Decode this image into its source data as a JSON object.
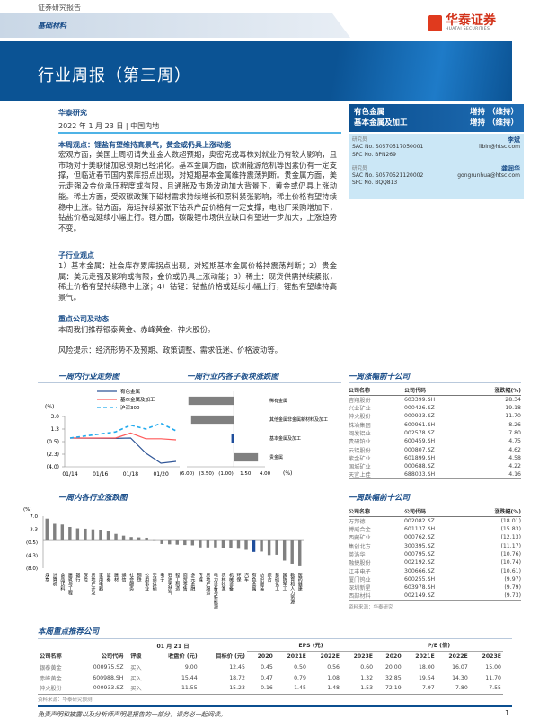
{
  "header": {
    "report_type": "证券研究报告",
    "sector": "基础材料",
    "title": "行业周报（第三周）",
    "logo_cn": "华泰证券",
    "logo_en": "HUATAI SECURITIES"
  },
  "ratings": [
    {
      "industry": "有色金属",
      "rating": "增持 （维持）"
    },
    {
      "industry": "基本金属及加工",
      "rating": "增持 （维持）"
    }
  ],
  "analysts": [
    {
      "role": "研究员",
      "name": "李斌",
      "sac": "SAC No. S0570517050001",
      "sfc": "SFC No. BPN269",
      "email": "libin@htsc.com"
    },
    {
      "role": "研究员",
      "name": "龚润华",
      "sac": "SAC No. S0570521120002",
      "sfc": "SFC No. BQQ813",
      "email": "gongrunhua@htsc.com"
    }
  ],
  "meta": {
    "org": "华泰研究",
    "date": "2022 年 1 月 23 日",
    "region": "中国内地"
  },
  "summary": {
    "heading": "本周观点：锂盐有望维持高景气，黄金或仍具上涨动能",
    "text": "宏观方面，美国上周初请失业金人数超预期，奥密克戎毒株对就业仍有较大影响，且市场对于美联储加息预期已经消化。基本金属方面，欧洲能源危机等因素仍有一定支撑，但临近春节国内累库拐点出现，对短期基本金属维持震荡判断。贵金属方面，美元走强及金价承压程度或有限，且通胀及市场波动加大背景下，黄金或仍具上涨动能。稀土方面，受双碳政策下磁材需求持续增长和原料紧张影响，稀土价格有望持续稳中上涨。钴方面，海运持续紧张下钴系产品价格有一定支撑，电池厂采购增加下，钴盐价格或延续小幅上行。锂方面，碳酸锂市场供应缺口有望进一步加大，上涨趋势不变。"
  },
  "sub_view": {
    "heading": "子行业观点",
    "text": "1）基本金属：社会库存累库拐点出现，对短期基本金属价格持震荡判断；2）贵金属：美元走强及影响或有限，金价或仍具上涨动能；3）稀土：现货供需持续紧张，稀土价格有望持续稳中上涨；4）钴锂：钴盐价格或延续小幅上行，锂盐有望维持高景气。"
  },
  "companies": {
    "heading": "重点公司及动态",
    "text": "本周我们推荐银泰黄金、赤峰黄金、神火股份。"
  },
  "risk": {
    "text": "风险提示：经济形势不及预期、政策调整、需求低迷、价格波动等。"
  },
  "chart_data": [
    {
      "type": "line",
      "title": "一周内行业走势图",
      "ylabel": "(%)",
      "x": [
        "01/14",
        "01/17",
        "01/18",
        "01/19",
        "01/20",
        "01/21"
      ],
      "x_ticks": [
        "01/14",
        "01/16",
        "01/18",
        "01/20"
      ],
      "y_ticks": [
        "3.0",
        "1.3",
        "(0.5)",
        "(2.3)",
        "(4.0)"
      ],
      "ylim": [
        -4.0,
        3.0
      ],
      "legend": "top",
      "series": [
        {
          "name": "有色金属",
          "color": "#2f5597",
          "values": [
            0,
            -0.05,
            0,
            -2.1,
            -3.5,
            -3.25
          ]
        },
        {
          "name": "基本金属及加工",
          "color": "#ff5a5a",
          "values": [
            0,
            0,
            0.7,
            -0.1,
            -0.1,
            -0.25
          ]
        },
        {
          "name": "沪深300",
          "color": "#22aaee",
          "dashed": true,
          "values": [
            0,
            0.85,
            1.8,
            1.25,
            2.05,
            1.0
          ]
        }
      ]
    },
    {
      "type": "bar",
      "orientation": "horizontal",
      "title": "一周行业内各子板块涨跌图",
      "xlabel": "(%)",
      "xlim": [
        -6,
        4
      ],
      "x_ticks": [
        "(6.00)",
        "(3.50)",
        "(1.00)",
        "1.50",
        "4.00"
      ],
      "categories": [
        "稀有金属",
        "其他金属非金属新材料及加工",
        "基本金属及加工",
        "贵金属"
      ],
      "values": [
        -5.8,
        -5.45,
        -0.3,
        3.1
      ],
      "highlight": "基本金属及加工"
    },
    {
      "type": "bar",
      "title": "一周内各行业涨跌图",
      "ylabel": "(%)",
      "ylim": [
        -8.0,
        7.0
      ],
      "y_ticks": [
        "7.0",
        "3.3",
        "(0.5)",
        "(4.3)",
        "(8.0)"
      ],
      "highlight": "有色金属",
      "categories": [
        "煤炭",
        "计算机",
        "食品饮料",
        "建筑与工程",
        "银行",
        "保险",
        "房地产开发",
        "家用电器",
        "证券",
        "建材",
        "通信",
        "社会服务",
        "钢铁",
        "公用事业",
        "交通运输",
        "电子",
        "石油天然气",
        "轻工制造",
        "商贸零售",
        "多元金融",
        "传媒",
        "房地产服务",
        "电力设备与新能源",
        "农林牧渔",
        "机械设备",
        "环保",
        "汽车",
        "有色金属",
        "纺织服装",
        "综合",
        "基础化工",
        "国防军工",
        "教育和人力资源",
        "医药健康"
      ],
      "values": [
        6.3,
        4.8,
        4.6,
        3.9,
        3.5,
        3.4,
        3.2,
        3.0,
        2.6,
        1.9,
        1.4,
        1.0,
        0.9,
        0.8,
        0.05,
        -1.0,
        -1.1,
        -1.2,
        -1.3,
        -1.4,
        -2.0,
        -2.0,
        -2.0,
        -2.1,
        -2.3,
        -2.4,
        -2.7,
        -3.3,
        -3.2,
        -4.2,
        -4.1,
        -5.8,
        -6.7,
        -7.2
      ]
    }
  ],
  "colors": {
    "brand": "#0b5394",
    "highlight_bar": "#1f4e9c",
    "bar": "#808080"
  },
  "top_gainers": {
    "heading": "一周涨幅前十公司",
    "cols": [
      "公司名称",
      "公司代码",
      "涨跌幅(%)"
    ],
    "rows": [
      [
        "吉翔股份",
        "603399.SH",
        "28.34"
      ],
      [
        "兴业矿业",
        "000426.SZ",
        "19.18"
      ],
      [
        "神火股份",
        "000933.SZ",
        "11.70"
      ],
      [
        "株冶集团",
        "600961.SH",
        "8.26"
      ],
      [
        "闽发铝业",
        "002578.SZ",
        "7.80"
      ],
      [
        "贵研铂业",
        "600459.SH",
        "4.75"
      ],
      [
        "云铝股份",
        "000807.SZ",
        "4.62"
      ],
      [
        "紫金矿业",
        "601899.SH",
        "4.58"
      ],
      [
        "国城矿业",
        "000688.SZ",
        "4.22"
      ],
      [
        "天宜上佳",
        "688033.SH",
        "4.16"
      ]
    ]
  },
  "top_losers": {
    "heading": "一周跌幅前十公司",
    "cols": [
      "公司名称",
      "公司代码",
      "涨跌幅(%)"
    ],
    "rows": [
      [
        "万邦德",
        "002082.SZ",
        "(18.01)"
      ],
      [
        "博威合金",
        "601137.SH",
        "(15.83)"
      ],
      [
        "西藏矿业",
        "000762.SZ",
        "(12.13)"
      ],
      [
        "集创北方",
        "300395.SZ",
        "(11.17)"
      ],
      [
        "英洛华",
        "000795.SZ",
        "(10.76)"
      ],
      [
        "融捷股份",
        "002192.SZ",
        "(10.74)"
      ],
      [
        "江丰电子",
        "300666.SZ",
        "(10.61)"
      ],
      [
        "厦门钨业",
        "600255.SH",
        "(9.97)"
      ],
      [
        "深圳新星",
        "603978.SH",
        "(9.79)"
      ],
      [
        "西部材料",
        "002149.SZ",
        "(9.73)"
      ]
    ],
    "source": "资料来源：华泰研究"
  },
  "recommend": {
    "heading": "本周重点推荐公司",
    "date_group": "01 月 21 日",
    "eps_group": "EPS (元)",
    "pe_group": "P/E (倍)",
    "cols": [
      "公司名称",
      "公司代码",
      "评级",
      "收盘价 (元)",
      "目标价 (元)",
      "2020",
      "2021E",
      "2022E",
      "2023E",
      "2020",
      "2021E",
      "2022E",
      "2023E"
    ],
    "rows": [
      [
        "银泰黄金",
        "000975.SZ",
        "买入",
        "9.00",
        "12.45",
        "0.45",
        "0.50",
        "0.56",
        "0.60",
        "20.00",
        "18.00",
        "16.07",
        "15.00"
      ],
      [
        "赤峰黄金",
        "600988.SH",
        "买入",
        "15.44",
        "18.72",
        "0.47",
        "0.79",
        "1.08",
        "1.32",
        "32.85",
        "19.54",
        "14.30",
        "11.70"
      ],
      [
        "神火股份",
        "000933.SZ",
        "买入",
        "11.55",
        "15.23",
        "0.16",
        "1.45",
        "1.48",
        "1.53",
        "72.19",
        "7.97",
        "7.80",
        "7.55"
      ]
    ],
    "source": "资料来源：华泰研究预测"
  },
  "footer": {
    "disclaimer": "免责声明和披露以及分析师声明是报告的一部分，请务必一起阅读。",
    "page": "1"
  }
}
